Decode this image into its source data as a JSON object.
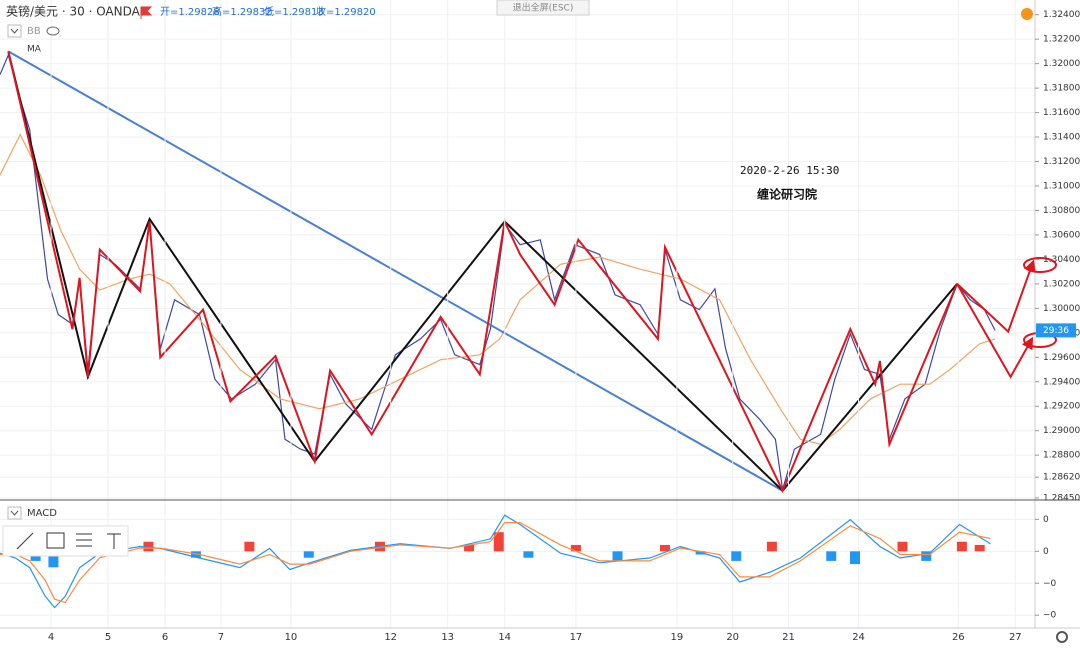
{
  "header": {
    "symbol": "英镑/美元 · 30 · OANDA",
    "ohlc": [
      "开=1.29828",
      "高=1.29832",
      "低=1.29813",
      "收=1.29820"
    ],
    "exit": "退出全屏(ESC)",
    "bb": "BB"
  },
  "chart_data": [
    {
      "type": "line",
      "grid": true,
      "annotations": [
        "2020-2-26 15:30",
        "缠论研习院"
      ],
      "countdown": "29:36",
      "countdown_color": "#2196f3",
      "xlim": [
        0,
        880
      ],
      "ylim": [
        1.2845,
        1.3252
      ],
      "yticks": [
        {
          "value": 1.324,
          "label": "1.32400"
        },
        {
          "value": 1.322,
          "label": "1.32200"
        },
        {
          "value": 1.32,
          "label": "1.32000"
        },
        {
          "value": 1.318,
          "label": "1.31800"
        },
        {
          "value": 1.316,
          "label": "1.31600"
        },
        {
          "value": 1.314,
          "label": "1.31400"
        },
        {
          "value": 1.312,
          "label": "1.31200"
        },
        {
          "value": 1.31,
          "label": "1.31000"
        },
        {
          "value": 1.308,
          "label": "1.30800"
        },
        {
          "value": 1.306,
          "label": "1.30600"
        },
        {
          "value": 1.304,
          "label": "1.30400"
        },
        {
          "value": 1.302,
          "label": "1.30200"
        },
        {
          "value": 1.3,
          "label": "1.30000"
        },
        {
          "value": 1.298,
          "label": "1.29800"
        },
        {
          "value": 1.296,
          "label": "1.29600"
        },
        {
          "value": 1.294,
          "label": "1.29400"
        },
        {
          "value": 1.292,
          "label": "1.29200"
        },
        {
          "value": 1.29,
          "label": "1.29000"
        },
        {
          "value": 1.288,
          "label": "1.28800"
        },
        {
          "value": 1.2862,
          "label": "1.28620"
        },
        {
          "value": 1.2845,
          "label": "1.28450"
        }
      ],
      "series": [
        {
          "color": "#3f4a9e",
          "x": [
            0,
            7,
            17,
            25,
            32,
            40,
            49,
            61,
            67,
            74,
            84,
            97,
            118,
            126,
            135,
            147,
            168,
            181,
            195,
            215,
            232,
            240,
            253,
            265,
            278,
            291,
            313,
            333,
            354,
            371,
            383,
            404,
            413,
            425,
            438,
            455,
            467,
            484,
            505,
            518,
            539,
            554,
            560,
            573,
            589,
            602,
            611,
            623,
            640,
            653,
            659,
            669,
            691,
            703,
            716,
            728,
            741,
            749,
            762,
            779,
            792,
            806,
            817,
            829,
            838
          ],
          "values": [
            1.3191,
            1.3207,
            1.3171,
            1.3146,
            1.3089,
            1.3024,
            1.2995,
            1.2987,
            1.3024,
            1.295,
            1.3044,
            1.3036,
            1.3016,
            1.3069,
            1.2967,
            1.3007,
            1.2995,
            1.2942,
            1.2926,
            1.2938,
            1.2958,
            1.2893,
            1.2885,
            1.2881,
            1.2946,
            1.2922,
            1.2901,
            1.2962,
            1.2975,
            1.2991,
            1.2962,
            1.2954,
            1.2983,
            1.3069,
            1.3052,
            1.3056,
            1.3007,
            1.3052,
            1.3044,
            1.3011,
            1.3003,
            1.2979,
            1.3048,
            1.3007,
            1.2999,
            1.3016,
            1.2967,
            1.2926,
            1.2909,
            1.2893,
            1.2852,
            1.2885,
            1.2897,
            1.2942,
            1.2979,
            1.295,
            1.2946,
            1.2893,
            1.2926,
            1.2938,
            1.2983,
            1.302,
            1.3007,
            1.2999,
            1.2982
          ]
        },
        {
          "name": "MA",
          "color": "#f4a460",
          "x": [
            0,
            17,
            34,
            51,
            67,
            84,
            109,
            126,
            143,
            168,
            202,
            236,
            269,
            303,
            337,
            371,
            404,
            421,
            438,
            472,
            505,
            539,
            573,
            606,
            632,
            657,
            674,
            691,
            707,
            733,
            758,
            783,
            800,
            825,
            838
          ],
          "values": [
            1.3109,
            1.3142,
            1.3109,
            1.3064,
            1.3032,
            1.3015,
            1.3024,
            1.3028,
            1.302,
            1.2991,
            1.295,
            1.2926,
            1.2918,
            1.2926,
            1.2942,
            1.2958,
            1.2962,
            1.2975,
            1.3007,
            1.3036,
            1.3042,
            1.3032,
            1.3024,
            1.3007,
            1.2958,
            1.2918,
            1.2893,
            1.2889,
            1.2901,
            1.2926,
            1.2938,
            1.2938,
            1.295,
            1.2971,
            1.2975
          ]
        }
      ],
      "drawings": [
        {
          "color": "#4a7fd4",
          "arrow": false,
          "x": [
            7,
            659
          ],
          "values": [
            1.321,
            1.2851
          ]
        },
        {
          "color": "#111111",
          "arrow": false,
          "x": [
            7,
            74,
            126,
            265,
            425,
            659,
            806
          ],
          "values": [
            1.321,
            1.2944,
            1.3073,
            1.2875,
            1.3071,
            1.2851,
            1.302
          ]
        },
        {
          "color": "#e0141e",
          "arrow": false,
          "x": [
            7,
            61,
            67,
            74,
            84,
            118,
            126,
            135,
            171,
            194,
            232,
            265,
            278,
            313,
            371,
            404,
            425,
            438,
            467,
            487,
            554,
            560,
            659,
            716,
            737,
            741,
            749,
            806
          ],
          "values": [
            1.321,
            1.2983,
            1.3025,
            1.2944,
            1.3048,
            1.3014,
            1.3071,
            1.296,
            1.2999,
            1.2924,
            1.2961,
            1.2875,
            1.2949,
            1.2897,
            1.2993,
            1.2946,
            1.3071,
            1.3044,
            1.3003,
            1.3056,
            1.2975,
            1.305,
            1.2851,
            1.2983,
            1.2938,
            1.2957,
            1.2889,
            1.302
          ]
        },
        {
          "color": "#e0141e",
          "arrow": true,
          "x": [
            806,
            849,
            870
          ],
          "values": [
            1.302,
            1.2981,
            1.3038
          ]
        },
        {
          "color": "#e0141e",
          "arrow": true,
          "x": [
            806,
            851,
            869
          ],
          "values": [
            1.302,
            1.2944,
            1.2975
          ]
        }
      ]
    },
    {
      "type": "macd",
      "title": "MACD",
      "grid": true,
      "xlim": [
        0,
        880
      ],
      "ylim": [
        -0.0024,
        0.00145
      ],
      "yticks": [
        {
          "value": 0.001,
          "label": "0"
        },
        0,
        {
          "value": -0.001,
          "label": "−0"
        },
        {
          "value": -0.002,
          "label": "−0"
        }
      ],
      "xticks": [
        {
          "value": 43,
          "label": "4"
        },
        {
          "value": 91,
          "label": "5"
        },
        {
          "value": 139,
          "label": "6"
        },
        {
          "value": 186,
          "label": "7"
        },
        {
          "value": 245,
          "label": "10"
        },
        {
          "value": 329,
          "label": "12"
        },
        {
          "value": 377,
          "label": "13"
        },
        {
          "value": 425,
          "label": "14"
        },
        {
          "value": 485,
          "label": "17"
        },
        {
          "value": 570,
          "label": "19"
        },
        {
          "value": 617,
          "label": "20"
        },
        {
          "value": 664,
          "label": "21"
        },
        {
          "value": 723,
          "label": "24"
        },
        {
          "value": 807,
          "label": "26"
        },
        {
          "value": 855,
          "label": "27"
        }
      ],
      "series": [
        {
          "color": "#2196f3",
          "x": [
            0,
            13,
            25,
            38,
            46,
            55,
            67,
            84,
            118,
            135,
            168,
            202,
            227,
            244,
            261,
            295,
            337,
            379,
            413,
            425,
            438,
            472,
            505,
            547,
            573,
            606,
            623,
            648,
            674,
            716,
            741,
            758,
            783,
            808,
            834
          ],
          "values": [
            -6e-05,
            -0.00021,
            -0.00051,
            -0.0014,
            -0.00176,
            -0.0014,
            -0.00051,
            -6e-05,
            0.00015,
            9e-05,
            -0.00021,
            -0.00051,
            9e-05,
            -0.00057,
            -0.00036,
            3e-05,
            0.00024,
            9e-05,
            0.00039,
            0.00113,
            0.00084,
            -6e-05,
            -0.00036,
            -0.00021,
            0.00015,
            -0.00021,
            -0.00096,
            -0.00066,
            -0.00021,
            0.00099,
            0.00015,
            -0.00021,
            -6e-05,
            0.00084,
            0.00024
          ]
        },
        {
          "color": "#ff8a3d",
          "x": [
            0,
            13,
            25,
            38,
            46,
            55,
            67,
            84,
            118,
            135,
            168,
            202,
            227,
            244,
            261,
            295,
            337,
            379,
            413,
            425,
            438,
            472,
            505,
            547,
            573,
            606,
            623,
            648,
            674,
            716,
            741,
            758,
            783,
            808,
            834
          ],
          "values": [
            -0.0001,
            -0.0001,
            -0.0003,
            -0.0009,
            -0.0015,
            -0.0016,
            -0.0009,
            -0.0002,
            0.0001,
            0.0001,
            -0.0001,
            -0.0004,
            -0.0001,
            -0.0004,
            -0.0004,
            0,
            0.0002,
            0.0001,
            0.0003,
            0.0009,
            0.0009,
            0.0002,
            -0.0003,
            -0.0003,
            0.0001,
            -0.0001,
            -0.0008,
            -0.0008,
            -0.0003,
            0.0008,
            0.0004,
            -0.0001,
            -0.0001,
            0.0006,
            0.0004
          ]
        }
      ],
      "histogram": {
        "pos_color": "#f44336",
        "neg_color": "#2196f3",
        "x": [
          30,
          45,
          125,
          165,
          210,
          260,
          320,
          395,
          420,
          445,
          485,
          520,
          560,
          590,
          620,
          650,
          700,
          720,
          760,
          780,
          810,
          825
        ],
        "values": [
          -0.0003,
          -0.0005,
          0.0003,
          -0.0002,
          0.0003,
          -0.0002,
          0.0003,
          0.0002,
          0.0006,
          -0.0002,
          0.0002,
          -0.0003,
          0.0002,
          -0.0001,
          -0.0003,
          0.0003,
          -0.0003,
          -0.0004,
          0.0003,
          -0.0003,
          0.0003,
          0.0002
        ]
      }
    }
  ]
}
